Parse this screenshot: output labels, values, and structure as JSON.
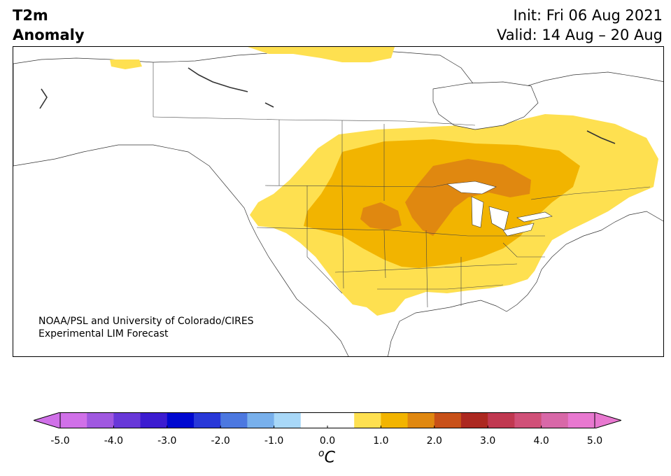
{
  "title": {
    "left_line1": "T2m",
    "left_line2": "Anomaly",
    "init": "Init: Fri 06 Aug 2021",
    "valid": "Valid: 14 Aug – 20 Aug"
  },
  "credit": {
    "line1": "NOAA/PSL and University of Colorado/CIRES",
    "line2": "Experimental LIM Forecast"
  },
  "colorbar": {
    "ticks": [
      "-5.0",
      "-4.0",
      "-3.0",
      "-2.0",
      "-1.0",
      "0.0",
      "1.0",
      "2.0",
      "3.0",
      "4.0",
      "5.0"
    ],
    "tick_values": [
      -5,
      -4,
      -3,
      -2,
      -1,
      0,
      1,
      2,
      3,
      4,
      5
    ],
    "range": [
      -5,
      5
    ],
    "unit_base": "C",
    "unit_sup": "o",
    "colors": [
      "#d070e8",
      "#a058e0",
      "#6838d8",
      "#3c1cd0",
      "#0008d0",
      "#2838d8",
      "#4c78e0",
      "#78b0ec",
      "#a8d8f8",
      "#ffffff",
      "#ffffff",
      "#fee050",
      "#f2b400",
      "#e08810",
      "#c85018",
      "#ac2820",
      "#c03850",
      "#d05078",
      "#d868a8",
      "#e878d0"
    ],
    "extend_low_color": "#d070e8",
    "extend_high_color": "#e878d0"
  },
  "anomaly_colors": {
    "0.5-1.0": "#fee050",
    "1.0-1.5": "#f2b400",
    "1.5-2.0": "#e08810"
  }
}
